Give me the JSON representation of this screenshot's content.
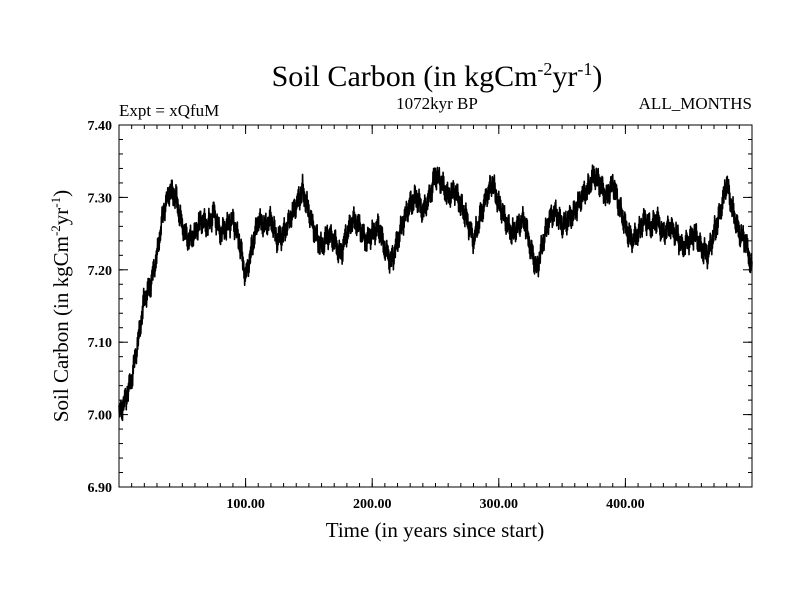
{
  "chart_data": {
    "type": "line",
    "title": {
      "main": "Soil Carbon (in kgCm",
      "sup1": "-2",
      "mid": "yr",
      "sup2": "-1",
      "close": ")"
    },
    "subtitle_left": "Expt = xQfuM",
    "subtitle_center": "1072kyr BP",
    "subtitle_right": "ALL_MONTHS",
    "xlabel": "Time (in years since start)",
    "ylabel": {
      "main": "Soil Carbon (in kgCm",
      "sup1": "-2",
      "mid": "yr",
      "sup2": "-1",
      "close": ")"
    },
    "xlim": [
      0,
      500
    ],
    "ylim": [
      6.9,
      7.4
    ],
    "xticks": [
      100,
      200,
      300,
      400
    ],
    "xtick_labels": [
      "100.00",
      "200.00",
      "300.00",
      "400.00"
    ],
    "yticks": [
      6.9,
      7.0,
      7.1,
      7.2,
      7.3,
      7.4
    ],
    "ytick_labels": [
      "6.90",
      "7.00",
      "7.10",
      "7.20",
      "7.30",
      "7.40"
    ],
    "series": [
      {
        "name": "Soil Carbon",
        "color": "#000000",
        "noise_band": 0.012,
        "x": [
          0,
          5,
          10,
          15,
          20,
          25,
          30,
          35,
          40,
          45,
          50,
          55,
          60,
          65,
          70,
          75,
          80,
          85,
          90,
          95,
          100,
          105,
          110,
          115,
          120,
          125,
          130,
          135,
          140,
          145,
          150,
          155,
          160,
          165,
          170,
          175,
          180,
          185,
          190,
          195,
          200,
          205,
          210,
          215,
          220,
          225,
          230,
          235,
          240,
          245,
          250,
          255,
          260,
          265,
          270,
          275,
          280,
          285,
          290,
          295,
          300,
          305,
          310,
          315,
          320,
          325,
          330,
          335,
          340,
          345,
          350,
          355,
          360,
          365,
          370,
          375,
          380,
          385,
          390,
          395,
          400,
          405,
          410,
          415,
          420,
          425,
          430,
          435,
          440,
          445,
          450,
          455,
          460,
          465,
          470,
          475,
          480,
          485,
          490,
          495,
          500
        ],
        "y": [
          7.0,
          7.02,
          7.05,
          7.1,
          7.16,
          7.18,
          7.22,
          7.28,
          7.31,
          7.3,
          7.26,
          7.24,
          7.25,
          7.27,
          7.26,
          7.28,
          7.25,
          7.26,
          7.27,
          7.24,
          7.19,
          7.23,
          7.27,
          7.26,
          7.27,
          7.24,
          7.25,
          7.27,
          7.29,
          7.31,
          7.28,
          7.25,
          7.23,
          7.25,
          7.24,
          7.22,
          7.25,
          7.27,
          7.26,
          7.24,
          7.25,
          7.26,
          7.23,
          7.21,
          7.24,
          7.27,
          7.29,
          7.3,
          7.28,
          7.3,
          7.33,
          7.32,
          7.3,
          7.31,
          7.29,
          7.27,
          7.24,
          7.27,
          7.3,
          7.32,
          7.29,
          7.27,
          7.25,
          7.26,
          7.27,
          7.23,
          7.2,
          7.24,
          7.27,
          7.28,
          7.26,
          7.27,
          7.28,
          7.3,
          7.31,
          7.33,
          7.32,
          7.3,
          7.32,
          7.29,
          7.26,
          7.24,
          7.25,
          7.27,
          7.26,
          7.27,
          7.25,
          7.26,
          7.25,
          7.23,
          7.24,
          7.25,
          7.23,
          7.22,
          7.25,
          7.28,
          7.32,
          7.28,
          7.25,
          7.24,
          7.2
        ]
      }
    ]
  }
}
